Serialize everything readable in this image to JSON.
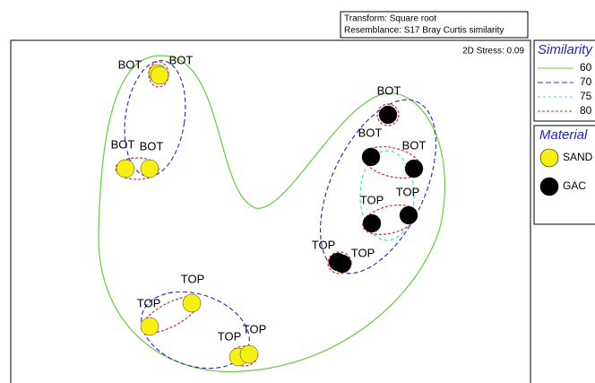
{
  "header": {
    "transform": "Transform: Square root",
    "resemblance": "Resemblance: S17 Bray Curtis similarity"
  },
  "stress": "2D Stress: 0.09",
  "similarity_legend": {
    "title": "Similarity",
    "items": [
      {
        "label": "60",
        "color": "#66cc44"
      },
      {
        "label": "70",
        "color": "#3333cc"
      },
      {
        "label": "75",
        "color": "#44dddd"
      },
      {
        "label": "80",
        "color": "#cc3333"
      }
    ]
  },
  "material_legend": {
    "title": "Material",
    "items": [
      {
        "label": "SAND",
        "color": "#f5f010"
      },
      {
        "label": "GAC",
        "color": "#000000"
      }
    ]
  },
  "points": [
    {
      "label": "BOT"
    },
    {
      "label": "BOT"
    },
    {
      "label": "BOT"
    },
    {
      "label": "BOT"
    },
    {
      "label": "BOT"
    },
    {
      "label": "BOT"
    },
    {
      "label": "BOT"
    },
    {
      "label": "TOP"
    },
    {
      "label": "TOP"
    },
    {
      "label": "TOP"
    },
    {
      "label": "TOP"
    },
    {
      "label": "TOP"
    },
    {
      "label": "TOP"
    },
    {
      "label": "TOP"
    },
    {
      "label": "TOP"
    }
  ]
}
